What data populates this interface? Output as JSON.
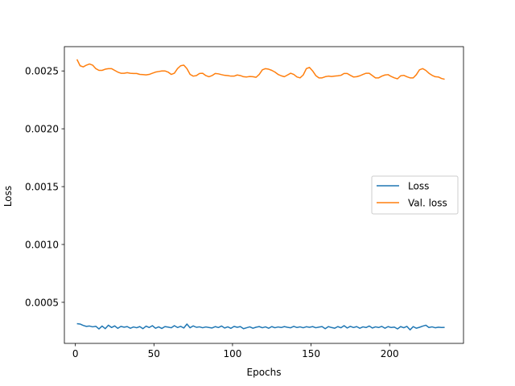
{
  "chart_data": {
    "type": "line",
    "xlabel": "Epochs",
    "ylabel": "Loss",
    "xlim": [
      -7,
      247
    ],
    "ylim": [
      0.000145,
      0.00271
    ],
    "xticks": [
      0,
      50,
      100,
      150,
      200
    ],
    "xtick_labels": [
      "0",
      "50",
      "100",
      "150",
      "200"
    ],
    "yticks": [
      0.0005,
      0.001,
      0.0015,
      0.002,
      0.0025
    ],
    "ytick_labels": [
      "0.0005",
      "0.0010",
      "0.0015",
      "0.0020",
      "0.0025"
    ],
    "grid": false,
    "legend": "center-right",
    "series": [
      {
        "name": "Loss",
        "color": "#1f77b4",
        "points": [
          [
            1,
            0.000315
          ],
          [
            3,
            0.000312
          ],
          [
            5,
            0.0003
          ],
          [
            7,
            0.000292
          ],
          [
            9,
            0.000295
          ],
          [
            11,
            0.000288
          ],
          [
            13,
            0.000293
          ],
          [
            15,
            0.00027
          ],
          [
            17,
            0.000295
          ],
          [
            19,
            0.000272
          ],
          [
            21,
            0.000302
          ],
          [
            23,
            0.000282
          ],
          [
            25,
            0.000296
          ],
          [
            27,
            0.000275
          ],
          [
            29,
            0.000292
          ],
          [
            31,
            0.000285
          ],
          [
            33,
            0.00029
          ],
          [
            35,
            0.000276
          ],
          [
            37,
            0.000287
          ],
          [
            39,
            0.00028
          ],
          [
            41,
            0.00029
          ],
          [
            43,
            0.000272
          ],
          [
            45,
            0.000294
          ],
          [
            47,
            0.000282
          ],
          [
            49,
            0.000298
          ],
          [
            51,
            0.000276
          ],
          [
            53,
            0.000288
          ],
          [
            55,
            0.000274
          ],
          [
            57,
            0.00029
          ],
          [
            59,
            0.000286
          ],
          [
            61,
            0.00028
          ],
          [
            63,
            0.000298
          ],
          [
            65,
            0.000282
          ],
          [
            67,
            0.000292
          ],
          [
            69,
            0.000278
          ],
          [
            71,
            0.000312
          ],
          [
            73,
            0.00028
          ],
          [
            75,
            0.000296
          ],
          [
            77,
            0.000284
          ],
          [
            79,
            0.000288
          ],
          [
            81,
            0.00028
          ],
          [
            83,
            0.000287
          ],
          [
            85,
            0.000282
          ],
          [
            87,
            0.000278
          ],
          [
            89,
            0.00029
          ],
          [
            91,
            0.000282
          ],
          [
            93,
            0.000295
          ],
          [
            95,
            0.000278
          ],
          [
            97,
            0.000288
          ],
          [
            99,
            0.000275
          ],
          [
            101,
            0.000292
          ],
          [
            103,
            0.000284
          ],
          [
            105,
            0.00029
          ],
          [
            107,
            0.000272
          ],
          [
            109,
            0.00028
          ],
          [
            111,
            0.000288
          ],
          [
            113,
            0.000276
          ],
          [
            115,
            0.000285
          ],
          [
            117,
            0.00029
          ],
          [
            119,
            0.00028
          ],
          [
            121,
            0.000288
          ],
          [
            123,
            0.000276
          ],
          [
            125,
            0.00029
          ],
          [
            127,
            0.00028
          ],
          [
            129,
            0.000287
          ],
          [
            131,
            0.000282
          ],
          [
            133,
            0.00029
          ],
          [
            135,
            0.000284
          ],
          [
            137,
            0.00028
          ],
          [
            139,
            0.000292
          ],
          [
            141,
            0.000282
          ],
          [
            143,
            0.000288
          ],
          [
            145,
            0.00028
          ],
          [
            147,
            0.000289
          ],
          [
            149,
            0.000284
          ],
          [
            151,
            0.00029
          ],
          [
            153,
            0.00028
          ],
          [
            155,
            0.000286
          ],
          [
            157,
            0.00029
          ],
          [
            159,
            0.000272
          ],
          [
            161,
            0.00029
          ],
          [
            163,
            0.000282
          ],
          [
            165,
            0.000276
          ],
          [
            167,
            0.00029
          ],
          [
            169,
            0.00028
          ],
          [
            171,
            0.000298
          ],
          [
            173,
            0.000278
          ],
          [
            175,
            0.000292
          ],
          [
            177,
            0.000282
          ],
          [
            179,
            0.00029
          ],
          [
            181,
            0.000276
          ],
          [
            183,
            0.000288
          ],
          [
            185,
            0.000282
          ],
          [
            187,
            0.000295
          ],
          [
            189,
            0.000278
          ],
          [
            191,
            0.000288
          ],
          [
            193,
            0.000282
          ],
          [
            195,
            0.000292
          ],
          [
            197,
            0.000276
          ],
          [
            199,
            0.00029
          ],
          [
            201,
            0.000282
          ],
          [
            203,
            0.000286
          ],
          [
            205,
            0.00027
          ],
          [
            207,
            0.00029
          ],
          [
            209,
            0.00028
          ],
          [
            211,
            0.000292
          ],
          [
            213,
            0.000262
          ],
          [
            215,
            0.00029
          ],
          [
            217,
            0.000276
          ],
          [
            219,
            0.000284
          ],
          [
            221,
            0.000294
          ],
          [
            223,
            0.000302
          ],
          [
            225,
            0.000282
          ],
          [
            227,
            0.000288
          ],
          [
            229,
            0.00028
          ],
          [
            231,
            0.000285
          ],
          [
            233,
            0.000282
          ],
          [
            235,
            0.000283
          ]
        ]
      },
      {
        "name": "Val. loss",
        "color": "#ff7f0e",
        "points": [
          [
            1,
            0.0026
          ],
          [
            3,
            0.002545
          ],
          [
            5,
            0.002535
          ],
          [
            7,
            0.00255
          ],
          [
            9,
            0.00256
          ],
          [
            11,
            0.00255
          ],
          [
            13,
            0.00252
          ],
          [
            15,
            0.002505
          ],
          [
            17,
            0.002505
          ],
          [
            19,
            0.002515
          ],
          [
            21,
            0.00252
          ],
          [
            23,
            0.00252
          ],
          [
            25,
            0.002505
          ],
          [
            27,
            0.00249
          ],
          [
            29,
            0.00248
          ],
          [
            31,
            0.00248
          ],
          [
            33,
            0.002485
          ],
          [
            35,
            0.00248
          ],
          [
            37,
            0.002478
          ],
          [
            39,
            0.002478
          ],
          [
            41,
            0.00247
          ],
          [
            43,
            0.002468
          ],
          [
            45,
            0.002466
          ],
          [
            47,
            0.00247
          ],
          [
            49,
            0.00248
          ],
          [
            51,
            0.00249
          ],
          [
            53,
            0.002495
          ],
          [
            55,
            0.0025
          ],
          [
            57,
            0.0025
          ],
          [
            59,
            0.00249
          ],
          [
            61,
            0.00247
          ],
          [
            63,
            0.00248
          ],
          [
            65,
            0.00252
          ],
          [
            67,
            0.002545
          ],
          [
            69,
            0.00255
          ],
          [
            71,
            0.00252
          ],
          [
            73,
            0.00247
          ],
          [
            75,
            0.002455
          ],
          [
            77,
            0.00246
          ],
          [
            79,
            0.002478
          ],
          [
            81,
            0.00248
          ],
          [
            83,
            0.00246
          ],
          [
            85,
            0.00245
          ],
          [
            87,
            0.00246
          ],
          [
            89,
            0.002478
          ],
          [
            91,
            0.002475
          ],
          [
            93,
            0.002468
          ],
          [
            95,
            0.002462
          ],
          [
            97,
            0.00246
          ],
          [
            99,
            0.002455
          ],
          [
            101,
            0.002455
          ],
          [
            103,
            0.002465
          ],
          [
            105,
            0.00246
          ],
          [
            107,
            0.00245
          ],
          [
            109,
            0.002448
          ],
          [
            111,
            0.002452
          ],
          [
            113,
            0.00245
          ],
          [
            115,
            0.002445
          ],
          [
            117,
            0.00247
          ],
          [
            119,
            0.00251
          ],
          [
            121,
            0.00252
          ],
          [
            123,
            0.002515
          ],
          [
            125,
            0.002505
          ],
          [
            127,
            0.00249
          ],
          [
            129,
            0.00247
          ],
          [
            131,
            0.002458
          ],
          [
            133,
            0.00245
          ],
          [
            135,
            0.002465
          ],
          [
            137,
            0.00248
          ],
          [
            139,
            0.00247
          ],
          [
            141,
            0.002448
          ],
          [
            143,
            0.00244
          ],
          [
            145,
            0.002465
          ],
          [
            147,
            0.00252
          ],
          [
            149,
            0.00253
          ],
          [
            151,
            0.0025
          ],
          [
            153,
            0.00246
          ],
          [
            155,
            0.00244
          ],
          [
            157,
            0.00244
          ],
          [
            159,
            0.00245
          ],
          [
            161,
            0.002455
          ],
          [
            163,
            0.002452
          ],
          [
            165,
            0.002455
          ],
          [
            167,
            0.002458
          ],
          [
            169,
            0.002462
          ],
          [
            171,
            0.002478
          ],
          [
            173,
            0.002478
          ],
          [
            175,
            0.002462
          ],
          [
            177,
            0.002448
          ],
          [
            179,
            0.00245
          ],
          [
            181,
            0.002458
          ],
          [
            183,
            0.00247
          ],
          [
            185,
            0.00248
          ],
          [
            187,
            0.00248
          ],
          [
            189,
            0.00246
          ],
          [
            191,
            0.00244
          ],
          [
            193,
            0.00244
          ],
          [
            195,
            0.002455
          ],
          [
            197,
            0.002465
          ],
          [
            199,
            0.002468
          ],
          [
            201,
            0.002452
          ],
          [
            203,
            0.00244
          ],
          [
            205,
            0.002432
          ],
          [
            207,
            0.002458
          ],
          [
            209,
            0.002462
          ],
          [
            211,
            0.00245
          ],
          [
            213,
            0.00244
          ],
          [
            215,
            0.00244
          ],
          [
            217,
            0.002468
          ],
          [
            219,
            0.00251
          ],
          [
            221,
            0.00252
          ],
          [
            223,
            0.002505
          ],
          [
            225,
            0.00248
          ],
          [
            227,
            0.002462
          ],
          [
            229,
            0.00245
          ],
          [
            231,
            0.002448
          ],
          [
            233,
            0.002435
          ],
          [
            235,
            0.002428
          ]
        ]
      }
    ]
  }
}
